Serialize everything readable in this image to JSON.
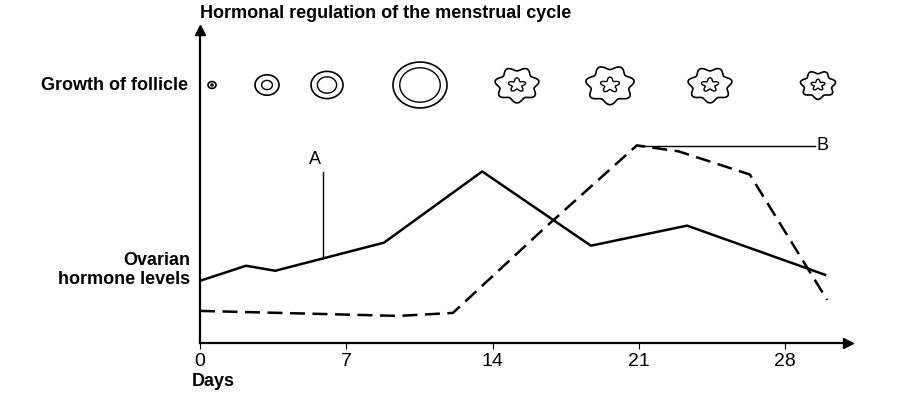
{
  "chart_data": {
    "type": "line",
    "title": "Hormonal regulation of the menstrual cycle",
    "row_label": "Growth of follicle",
    "y_label": "Ovarian\nhormone levels",
    "x_label": "Days",
    "xlim": [
      0,
      31
    ],
    "xticks": [
      0,
      7,
      14,
      21,
      28
    ],
    "ylim": [
      0,
      15.6
    ],
    "yticks": [],
    "tick_labels": "x",
    "grid": false,
    "series": [
      {
        "color": "#000000",
        "line_style": "solid",
        "x": [
          0,
          2.2,
          3.6,
          8.8,
          13.5,
          18.7,
          23.3,
          29.9
        ],
        "values": [
          3.1,
          3.85,
          3.6,
          5.0,
          8.55,
          4.85,
          5.85,
          3.4
        ]
      },
      {
        "color": "#000000",
        "line_style": "dashed",
        "x": [
          0,
          9.5,
          12.1,
          16.4,
          20.9,
          22.9,
          26.3,
          30.0
        ],
        "values": [
          1.6,
          1.35,
          1.5,
          5.65,
          9.85,
          9.55,
          8.4,
          2.15
        ]
      }
    ],
    "annotations": [
      {
        "text": "A",
        "series": 0,
        "x": 5.9
      },
      {
        "text": "B",
        "series": 1,
        "x": 21.0
      }
    ]
  }
}
